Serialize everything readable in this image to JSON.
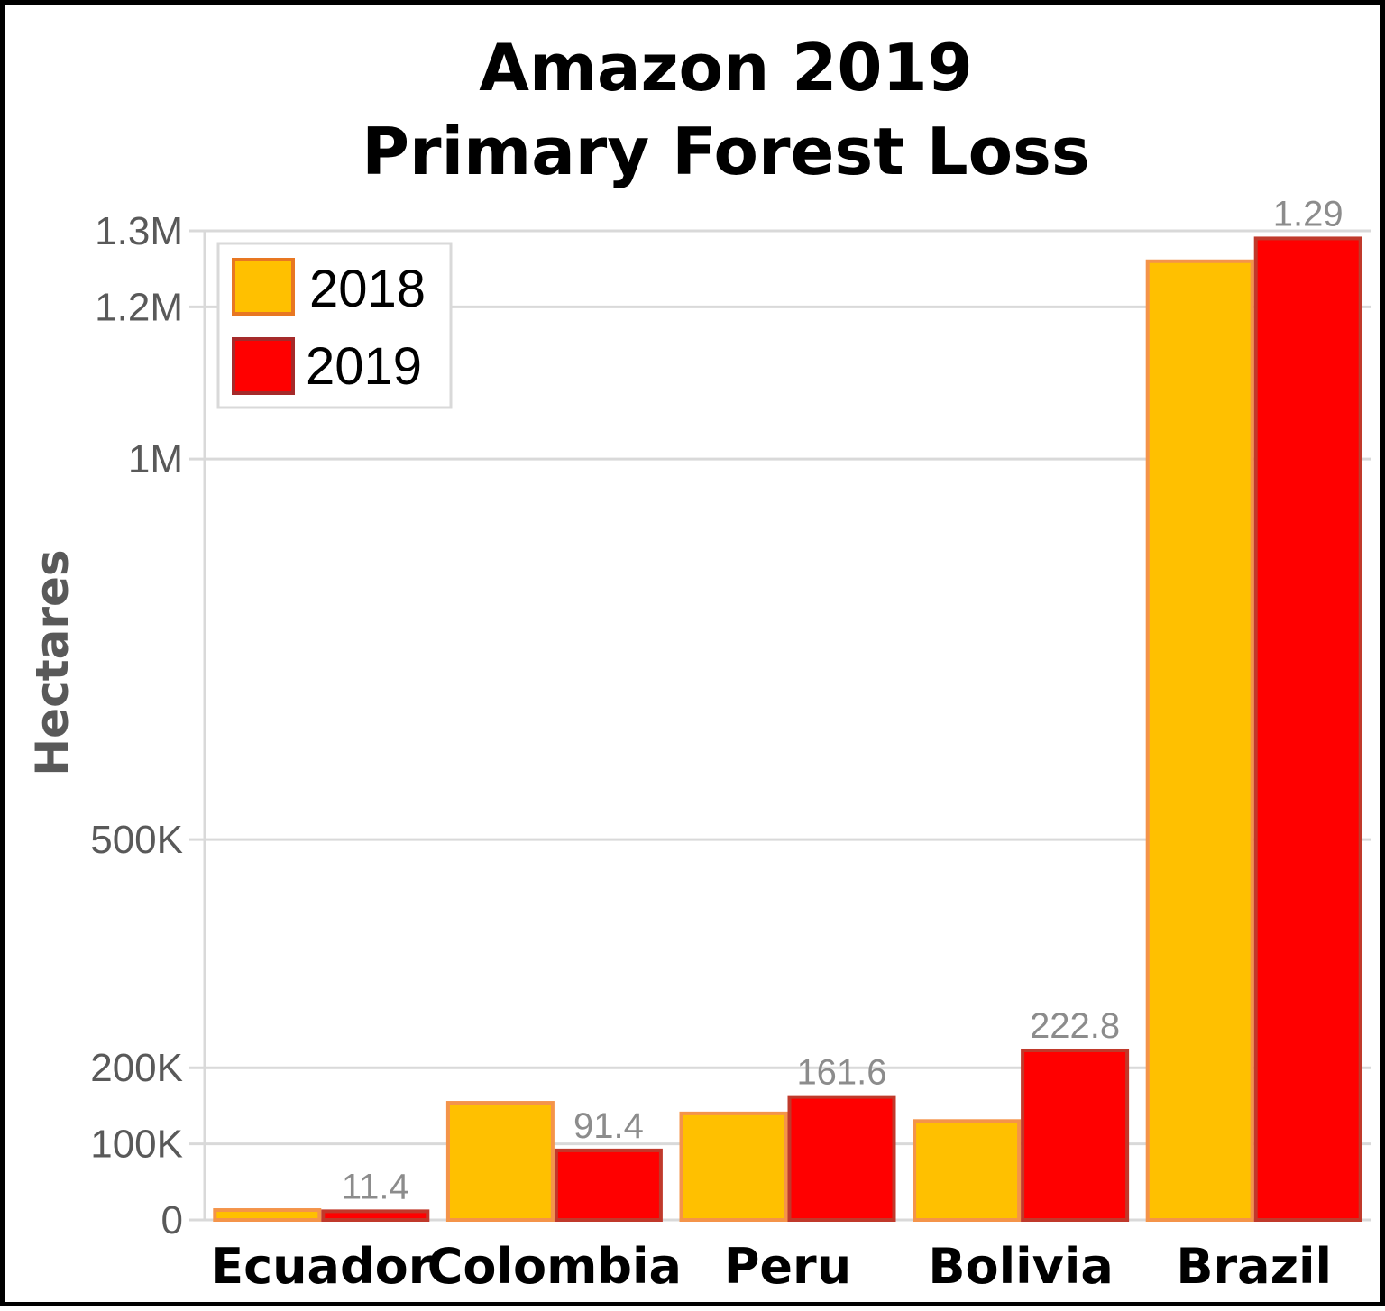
{
  "chart_data": {
    "type": "bar",
    "title": [
      "Amazon 2019",
      "Primary Forest Loss"
    ],
    "ylabel": "Hectares",
    "xlabel": "",
    "categories": [
      "Ecuador",
      "Colombia",
      "Peru",
      "Bolivia",
      "Brazil"
    ],
    "series": [
      {
        "name": "2018",
        "values": [
          13000,
          154000,
          140000,
          130000,
          1260000
        ],
        "color": "#FFC000",
        "stroke": "#F4944A"
      },
      {
        "name": "2019",
        "values": [
          11400,
          91400,
          161600,
          222800,
          1290000
        ],
        "color": "#FF0000",
        "stroke": "#C0392B"
      }
    ],
    "data_labels_2019": [
      "11.4",
      "91.4",
      "161.6",
      "222.8",
      "1.29"
    ],
    "yticks": [
      {
        "value": 0,
        "label": "0"
      },
      {
        "value": 100000,
        "label": "100K"
      },
      {
        "value": 200000,
        "label": "200K"
      },
      {
        "value": 500000,
        "label": "500K"
      },
      {
        "value": 1000000,
        "label": "1M"
      },
      {
        "value": 1200000,
        "label": "1.2M"
      },
      {
        "value": 1300000,
        "label": "1.3M"
      }
    ],
    "ylim": [
      0,
      1300000
    ],
    "grid": true,
    "legend_position": "top-left"
  }
}
